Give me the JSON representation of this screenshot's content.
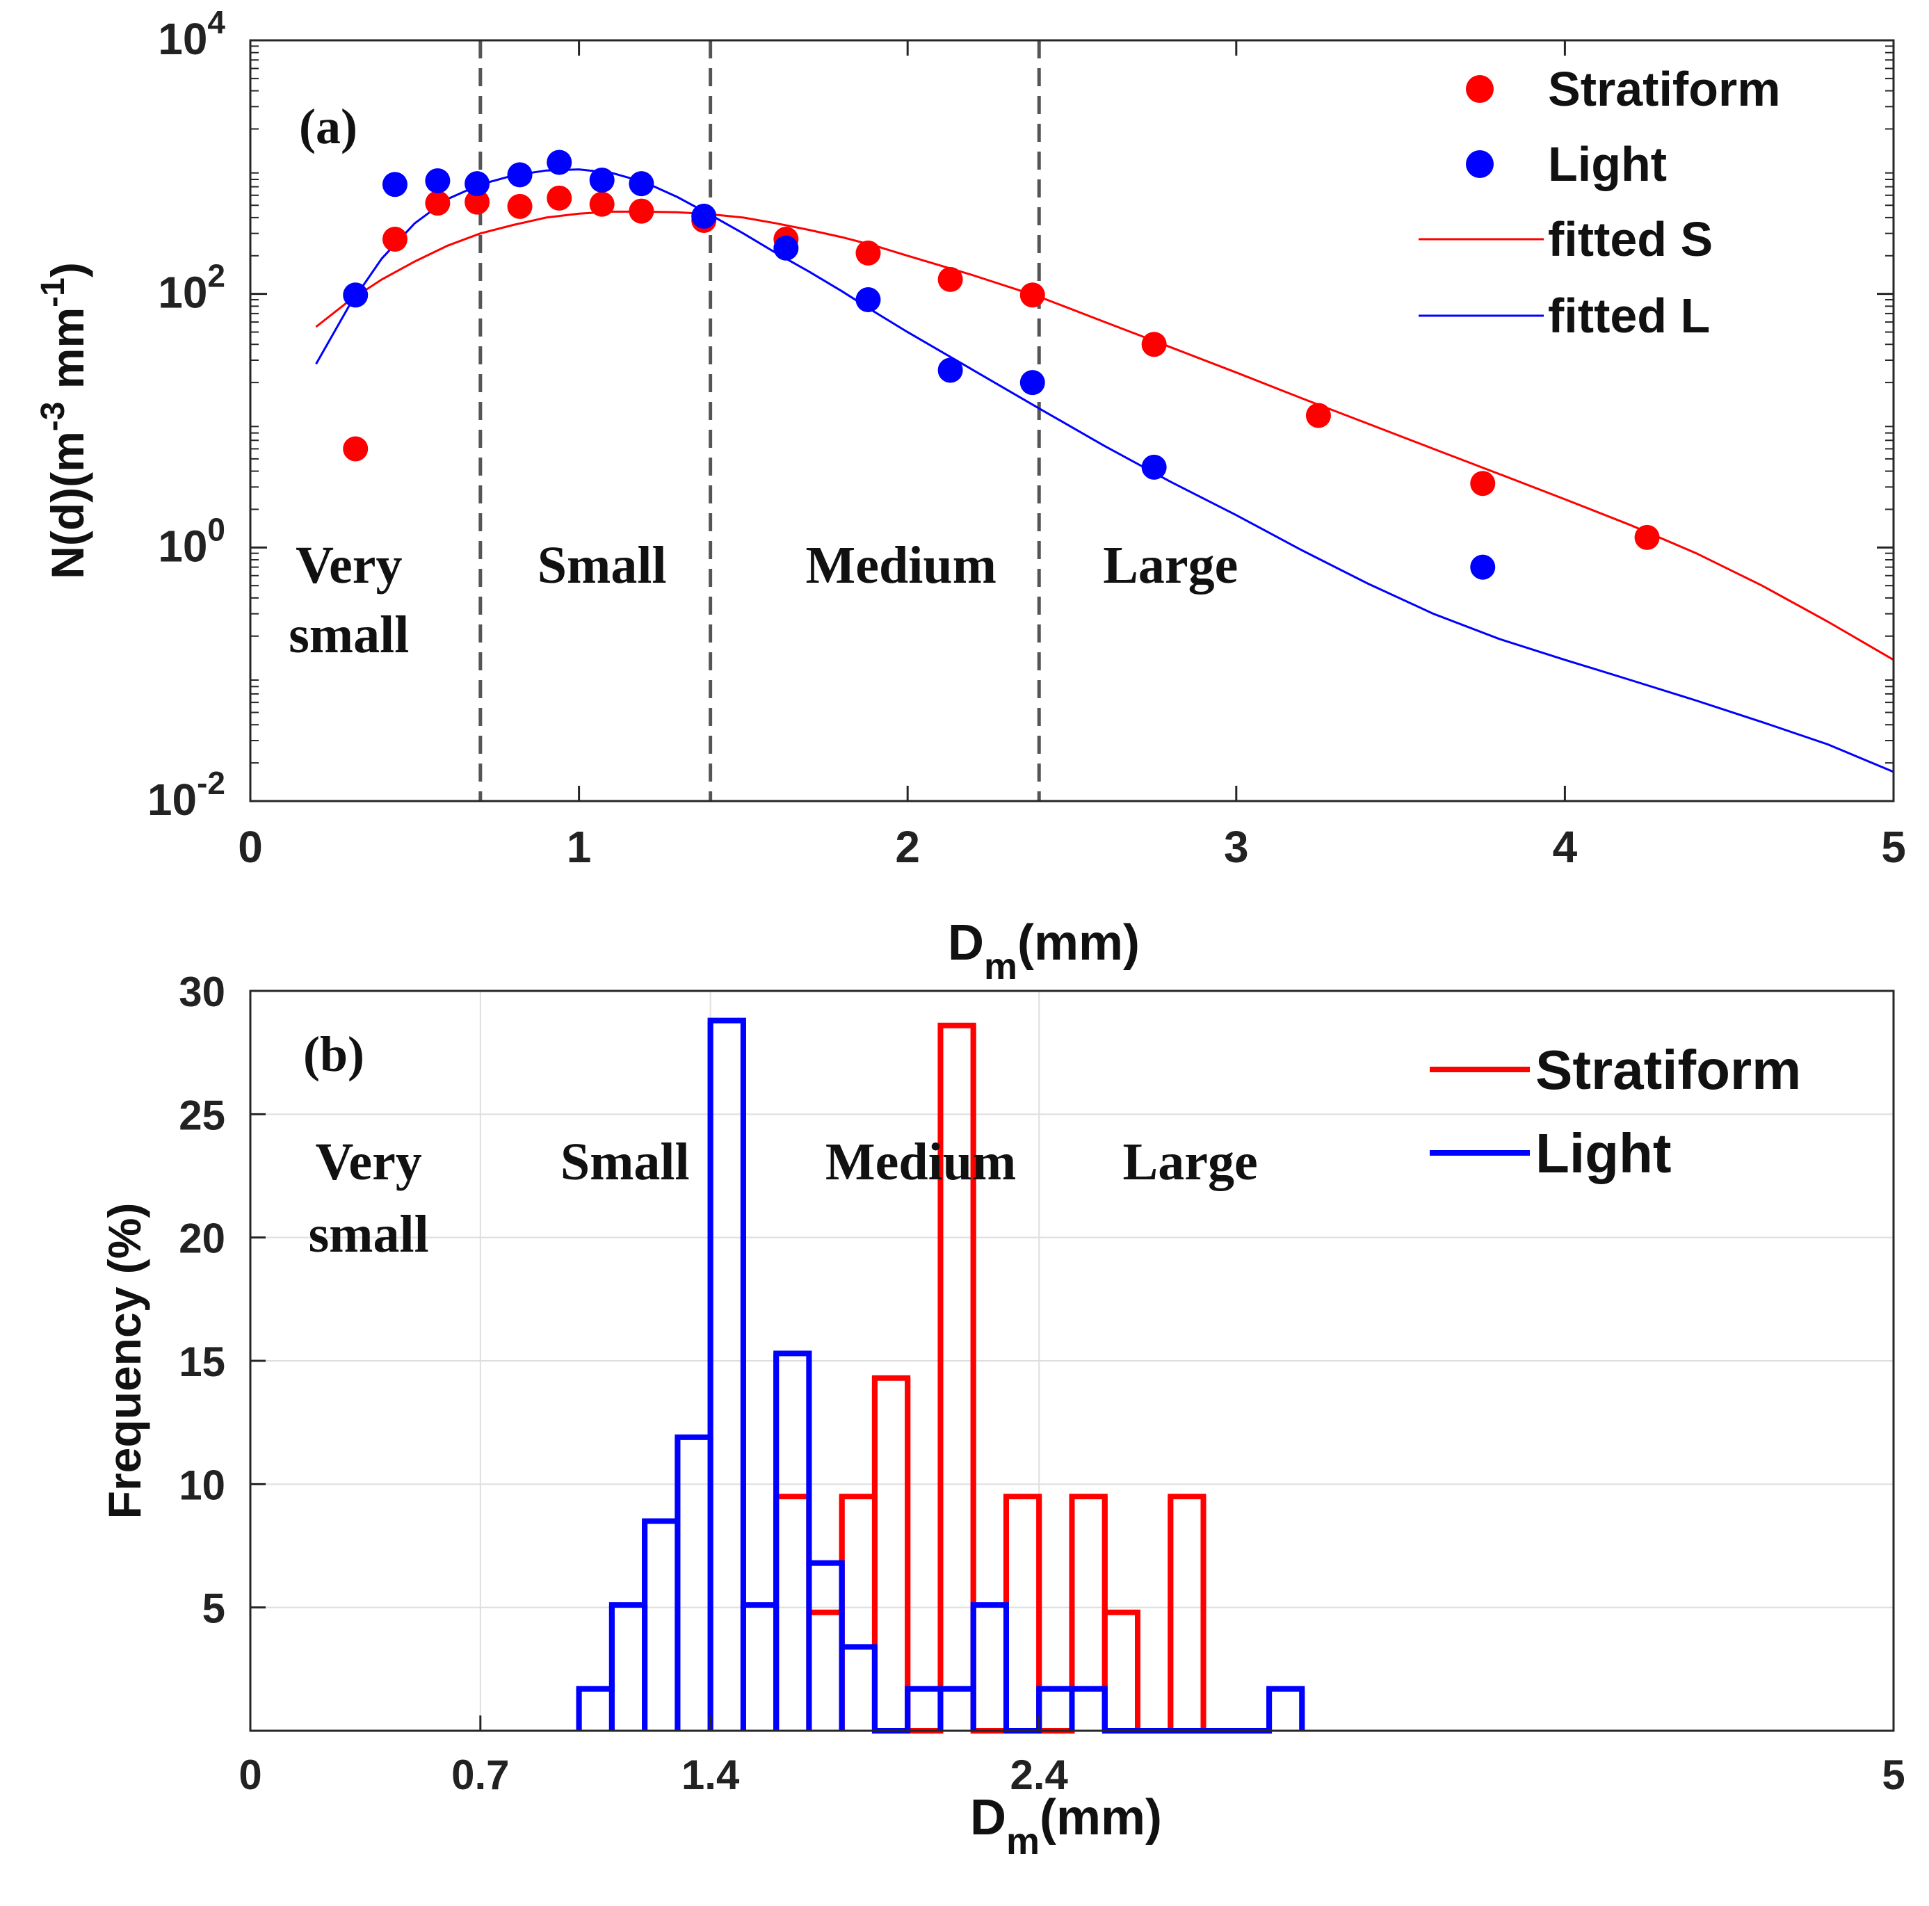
{
  "chart_data": [
    {
      "type": "scatter",
      "panel_label": "(a)",
      "xlabel": "D",
      "xlabel_sub": "m",
      "xlabel_unit": "(mm)",
      "ylabel": "N(d)(m",
      "ylabel_exp1": "-3",
      "ylabel_mid": " mm",
      "ylabel_exp2": "-1",
      "ylabel_end": ")",
      "xlim": [
        0,
        5
      ],
      "ylim": [
        0.01,
        10000
      ],
      "yscale": "log",
      "x_ticks": [
        "0",
        "1",
        "2",
        "3",
        "4",
        "5"
      ],
      "y_ticks": [
        {
          "value": 10000,
          "base": "10",
          "exp": "4"
        },
        {
          "value": 100,
          "base": "10",
          "exp": "2"
        },
        {
          "value": 1,
          "base": "10",
          "exp": "0"
        },
        {
          "value": 0.01,
          "base": "10",
          "exp": "-2"
        }
      ],
      "grid": false,
      "legend_position": "top-right",
      "boundaries": [
        0.7,
        1.4,
        2.4
      ],
      "regions": [
        {
          "lines": [
            "Very",
            "small"
          ],
          "x": 0.3
        },
        {
          "lines": [
            "Small"
          ],
          "x": 1.07
        },
        {
          "lines": [
            "Medium"
          ],
          "x": 1.98
        },
        {
          "lines": [
            "Large"
          ],
          "x": 2.8
        }
      ],
      "series": [
        {
          "name": "Stratiform",
          "kind": "points",
          "color": "#ff0000",
          "x": [
            0.32,
            0.44,
            0.57,
            0.69,
            0.82,
            0.94,
            1.07,
            1.19,
            1.38,
            1.63,
            1.88,
            2.13,
            2.38,
            2.75,
            3.25,
            3.75,
            4.25
          ],
          "y": [
            6,
            270,
            520,
            530,
            490,
            570,
            510,
            450,
            380,
            270,
            210,
            130,
            98,
            40,
            11,
            3.2,
            1.2
          ]
        },
        {
          "name": "Light",
          "kind": "points",
          "color": "#0000ff",
          "x": [
            0.32,
            0.44,
            0.57,
            0.69,
            0.82,
            0.94,
            1.07,
            1.19,
            1.38,
            1.63,
            1.88,
            2.13,
            2.38,
            2.75,
            3.75
          ],
          "y": [
            98,
            730,
            780,
            740,
            870,
            1090,
            790,
            740,
            410,
            230,
            90,
            25,
            20,
            4.3,
            0.7
          ]
        },
        {
          "name": "fitted S",
          "kind": "line",
          "color": "#ff0000",
          "x": [
            0.2,
            0.3,
            0.4,
            0.5,
            0.6,
            0.7,
            0.8,
            0.9,
            1.0,
            1.1,
            1.2,
            1.3,
            1.4,
            1.5,
            1.6,
            1.7,
            1.8,
            1.9,
            2.0,
            2.2,
            2.4,
            2.6,
            2.8,
            3.0,
            3.2,
            3.4,
            3.6,
            3.8,
            4.0,
            4.2,
            4.4,
            4.6,
            4.8,
            5.0
          ],
          "y": [
            55,
            88,
            130,
            180,
            240,
            300,
            350,
            400,
            430,
            445,
            445,
            440,
            425,
            400,
            360,
            320,
            280,
            240,
            200,
            140,
            95,
            60,
            38,
            24,
            15,
            9.5,
            6,
            3.8,
            2.4,
            1.5,
            0.9,
            0.5,
            0.26,
            0.13
          ]
        },
        {
          "name": "fitted L",
          "kind": "line",
          "color": "#0000ff",
          "x": [
            0.2,
            0.3,
            0.4,
            0.5,
            0.6,
            0.7,
            0.8,
            0.9,
            1.0,
            1.1,
            1.2,
            1.3,
            1.4,
            1.5,
            1.6,
            1.7,
            1.8,
            1.9,
            2.0,
            2.2,
            2.4,
            2.6,
            2.8,
            3.0,
            3.2,
            3.4,
            3.6,
            3.8,
            4.0,
            4.2,
            4.4,
            4.6,
            4.8,
            5.0
          ],
          "y": [
            28,
            80,
            190,
            360,
            560,
            730,
            860,
            940,
            960,
            900,
            760,
            580,
            420,
            300,
            210,
            150,
            105,
            72,
            50,
            25,
            12.5,
            6.3,
            3.3,
            1.8,
            0.95,
            0.52,
            0.3,
            0.19,
            0.13,
            0.09,
            0.062,
            0.042,
            0.028,
            0.017
          ]
        }
      ]
    },
    {
      "type": "bar",
      "subtype": "step-histogram",
      "panel_label": "(b)",
      "xlabel": "D",
      "xlabel_sub": "m",
      "xlabel_unit": "(mm)",
      "ylabel": "Frequency (%)",
      "xlim": [
        0,
        5
      ],
      "ylim": [
        0,
        30
      ],
      "x_ticks": [
        "0",
        "0.7",
        "1.4",
        "2.4",
        "5"
      ],
      "x_tick_values": [
        0,
        0.7,
        1.4,
        2.4,
        5
      ],
      "y_ticks": [
        "5",
        "10",
        "15",
        "20",
        "25",
        "30"
      ],
      "grid": true,
      "legend_position": "top-right",
      "regions": [
        {
          "lines": [
            "Very",
            "small"
          ],
          "x": 0.36
        },
        {
          "lines": [
            "Small"
          ],
          "x": 1.14
        },
        {
          "lines": [
            "Medium"
          ],
          "x": 2.04
        },
        {
          "lines": [
            "Large"
          ],
          "x": 2.86
        }
      ],
      "series": [
        {
          "name": "Stratiform",
          "color": "#ff0000",
          "bin_edges": [
            1.6,
            1.7,
            1.8,
            1.9,
            2.0,
            2.1,
            2.2,
            2.3,
            2.4,
            2.5,
            2.6,
            2.7,
            2.8,
            2.9
          ],
          "values": [
            9.5,
            4.8,
            9.5,
            14.3,
            0,
            28.6,
            0,
            9.5,
            0,
            9.5,
            4.8,
            0,
            9.5
          ]
        },
        {
          "name": "Light",
          "color": "#0000ff",
          "bin_edges": [
            1.0,
            1.1,
            1.2,
            1.3,
            1.4,
            1.5,
            1.6,
            1.7,
            1.8,
            1.9,
            2.0,
            2.1,
            2.2,
            2.3,
            2.4,
            2.5,
            2.6,
            2.7,
            2.8,
            2.9,
            3.0,
            3.1,
            3.2
          ],
          "values": [
            1.7,
            5.1,
            8.5,
            11.9,
            28.8,
            5.1,
            15.3,
            6.8,
            3.4,
            0,
            1.7,
            1.7,
            5.1,
            0,
            1.7,
            1.7,
            0,
            0,
            0,
            0,
            0,
            1.7
          ]
        }
      ]
    }
  ]
}
